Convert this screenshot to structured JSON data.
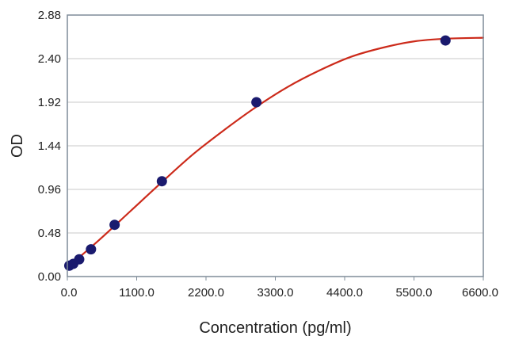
{
  "chart_data": {
    "type": "scatter",
    "title": "",
    "xlabel": "Concentration (pg/ml)",
    "ylabel": "OD",
    "xlim": [
      0,
      6600
    ],
    "ylim": [
      0,
      2.88
    ],
    "x_ticks": [
      "0.0",
      "1100.0",
      "2200.0",
      "3300.0",
      "4400.0",
      "5500.0",
      "6600.0"
    ],
    "y_ticks": [
      "0.00",
      "0.48",
      "0.96",
      "1.44",
      "1.92",
      "2.40",
      "2.88"
    ],
    "grid": "horizontal",
    "legend": "none",
    "series": [
      {
        "kind": "points",
        "x": [
          31,
          94,
          188,
          375,
          750,
          1500,
          3000,
          6000
        ],
        "y": [
          0.12,
          0.14,
          0.19,
          0.3,
          0.57,
          1.05,
          1.92,
          2.6
        ],
        "color": "#1a1a6e"
      },
      {
        "kind": "fitted-curve",
        "x": [
          0,
          500,
          1000,
          1500,
          2000,
          2500,
          3000,
          3500,
          4000,
          4500,
          5000,
          5500,
          6000,
          6600
        ],
        "y": [
          0.1,
          0.4,
          0.72,
          1.04,
          1.35,
          1.62,
          1.87,
          2.09,
          2.27,
          2.42,
          2.52,
          2.59,
          2.62,
          2.63
        ],
        "color": "#cc2a1a"
      }
    ],
    "colors": {
      "frame": "#7f8c99",
      "grid": "#c8c8c8"
    }
  }
}
